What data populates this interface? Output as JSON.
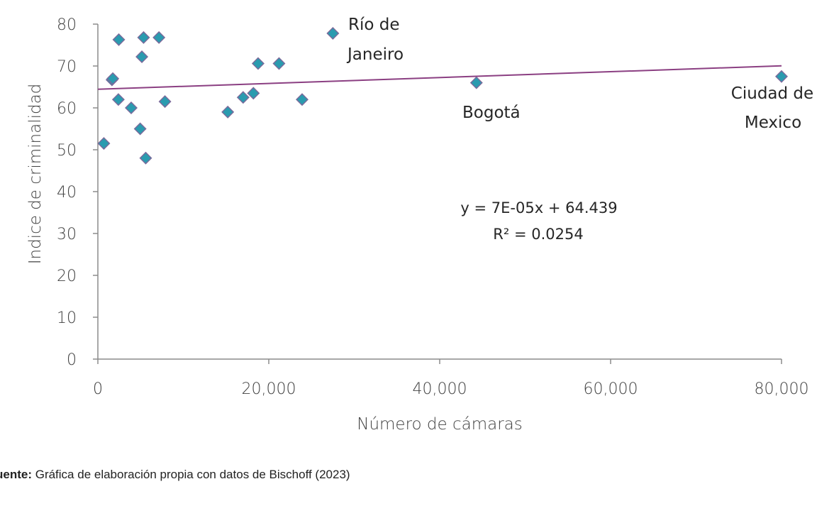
{
  "chart_data": {
    "type": "scatter",
    "xlabel": "Número de cámaras",
    "ylabel": "Indice de criminalidad",
    "xlim": [
      0,
      80000
    ],
    "ylim": [
      0,
      80
    ],
    "x_ticks": [
      "0",
      "20,000",
      "40,000",
      "60,000",
      "80,000"
    ],
    "x_tick_values": [
      0,
      20000,
      40000,
      60000,
      80000
    ],
    "y_ticks": [
      "0",
      "10",
      "20",
      "30",
      "40",
      "50",
      "60",
      "70",
      "80"
    ],
    "y_tick_values": [
      0,
      10,
      20,
      30,
      40,
      50,
      60,
      70,
      80
    ],
    "grid": false,
    "marker_color": "#2A9BAF",
    "marker_edge_color": "#7A6A9B",
    "trendline_color": "#8B3F82",
    "points": [
      {
        "x": 700,
        "y": 51.5
      },
      {
        "x": 1650,
        "y": 66.7
      },
      {
        "x": 1750,
        "y": 67.0
      },
      {
        "x": 2400,
        "y": 62.0
      },
      {
        "x": 2450,
        "y": 76.3
      },
      {
        "x": 3900,
        "y": 60.0
      },
      {
        "x": 4950,
        "y": 55.0
      },
      {
        "x": 5150,
        "y": 72.2
      },
      {
        "x": 5350,
        "y": 76.8
      },
      {
        "x": 5600,
        "y": 48.0
      },
      {
        "x": 7150,
        "y": 76.8
      },
      {
        "x": 7850,
        "y": 61.5
      },
      {
        "x": 15200,
        "y": 59.0
      },
      {
        "x": 17000,
        "y": 62.5
      },
      {
        "x": 18200,
        "y": 63.5
      },
      {
        "x": 18750,
        "y": 70.6
      },
      {
        "x": 21200,
        "y": 70.6
      },
      {
        "x": 23900,
        "y": 62.0
      },
      {
        "x": 27500,
        "y": 77.8
      },
      {
        "x": 44300,
        "y": 66.0
      },
      {
        "x": 80000,
        "y": 67.5
      }
    ],
    "trendline": {
      "slope": 7e-05,
      "intercept": 64.439,
      "x_range": [
        0,
        80000
      ]
    },
    "annotations": [
      {
        "lines": [
          "Río de",
          "Janeiro"
        ]
      },
      {
        "lines": [
          "Bogotá"
        ]
      },
      {
        "lines": [
          "Ciudad de",
          "Mexico"
        ]
      }
    ],
    "equation": [
      "y = 7E-05x + 64.439",
      "R² = 0.0254"
    ]
  },
  "source": {
    "label": "uente:",
    "text": " Gráfica de elaboración propia con datos de Bischoff (2023)"
  }
}
